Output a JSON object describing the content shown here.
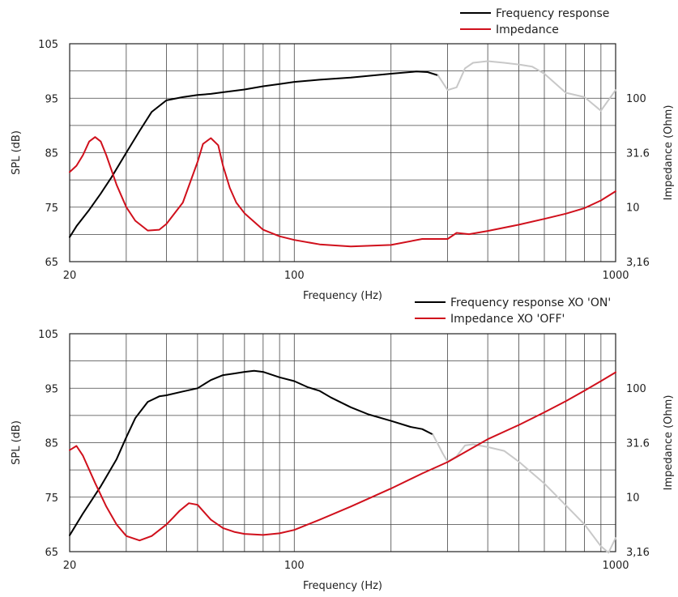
{
  "chart_data": [
    {
      "type": "line",
      "title": "",
      "xlabel": "Frequency (Hz)",
      "ylabel": "SPL (dB)",
      "y2label": "Impedance (Ohm)",
      "xscale": "log",
      "xlim": [
        20,
        1000
      ],
      "ylim": [
        65,
        105
      ],
      "y2scale": "log",
      "y2lim": [
        3.16,
        316
      ],
      "grid": true,
      "legend_position": "top-right",
      "x_ticks": [
        "20",
        "100",
        "1000"
      ],
      "y_ticks": [
        "65",
        "75",
        "85",
        "95",
        "105"
      ],
      "y2_ticks": [
        "3,16",
        "10",
        "31.6",
        "100"
      ],
      "series": [
        {
          "name": "Frequency response",
          "color": "#000000",
          "axis": "left",
          "x": [
            20,
            21,
            23,
            25,
            27,
            30,
            33,
            36,
            40,
            45,
            50,
            55,
            60,
            70,
            80,
            90,
            100,
            120,
            150,
            200,
            240,
            260,
            280
          ],
          "y": [
            69.5,
            71.5,
            74.5,
            77.5,
            80.5,
            85,
            89,
            92.5,
            94.6,
            95.2,
            95.6,
            95.8,
            96.1,
            96.6,
            97.2,
            97.6,
            98,
            98.4,
            98.8,
            99.5,
            99.9,
            99.8,
            99.2
          ]
        },
        {
          "name": "",
          "color": "#c8c8c8",
          "axis": "left",
          "x": [
            280,
            300,
            320,
            340,
            360,
            400,
            450,
            500,
            550,
            600,
            700,
            800,
            900,
            1000
          ],
          "y": [
            99.2,
            96.5,
            97,
            100.5,
            101.5,
            101.8,
            101.5,
            101.2,
            100.8,
            99.5,
            96,
            95.2,
            92.7,
            96.5
          ]
        },
        {
          "name": "Impedance",
          "color": "#d0101c",
          "axis": "right",
          "x": [
            20,
            21,
            22,
            23,
            24,
            25,
            26,
            28,
            30,
            32,
            35,
            38,
            40,
            45,
            50,
            52,
            55,
            58,
            60,
            63,
            66,
            70,
            80,
            90,
            100,
            120,
            150,
            200,
            250,
            300,
            320,
            350,
            400,
            500,
            600,
            700,
            800,
            900,
            1000
          ],
          "y": [
            21,
            24,
            30,
            40,
            44,
            40,
            30,
            16,
            10,
            7.5,
            6.1,
            6.2,
            7,
            11,
            26,
            38,
            43,
            37,
            24,
            15,
            11,
            8.8,
            6.2,
            5.4,
            5.0,
            4.55,
            4.35,
            4.5,
            5.1,
            5.1,
            5.8,
            5.65,
            6.05,
            6.9,
            7.8,
            8.7,
            9.8,
            11.5,
            14
          ]
        }
      ]
    },
    {
      "type": "line",
      "title": "",
      "xlabel": "Frequency (Hz)",
      "ylabel": "SPL (dB)",
      "y2label": "Impedance (Ohm)",
      "xscale": "log",
      "xlim": [
        20,
        1000
      ],
      "ylim": [
        65,
        105
      ],
      "y2scale": "log",
      "y2lim": [
        3.16,
        316
      ],
      "grid": true,
      "legend_position": "top-right",
      "x_ticks": [
        "20",
        "100",
        "1000"
      ],
      "y_ticks": [
        "65",
        "75",
        "85",
        "95",
        "105"
      ],
      "y2_ticks": [
        "3,16",
        "10",
        "31.6",
        "100"
      ],
      "series": [
        {
          "name": "Frequency response XO 'ON'",
          "color": "#000000",
          "axis": "left",
          "x": [
            20,
            22,
            25,
            28,
            30,
            32,
            35,
            38,
            40,
            45,
            50,
            55,
            60,
            65,
            70,
            75,
            80,
            90,
            100,
            110,
            120,
            130,
            150,
            170,
            200,
            230,
            250,
            270
          ],
          "y": [
            68,
            72,
            77,
            82,
            86,
            89.5,
            92.5,
            93.5,
            93.7,
            94.4,
            95,
            96.5,
            97.4,
            97.7,
            98,
            98.2,
            98,
            97,
            96.3,
            95.2,
            94.5,
            93.3,
            91.5,
            90.2,
            89,
            87.9,
            87.5,
            86.5
          ]
        },
        {
          "name": "",
          "color": "#c8c8c8",
          "axis": "left",
          "x": [
            270,
            290,
            300,
            320,
            340,
            360,
            400,
            450,
            500,
            600,
            700,
            800,
            900,
            950,
            1000
          ],
          "y": [
            86.5,
            83,
            81.5,
            82.5,
            84.5,
            84.7,
            84.2,
            83.5,
            81.5,
            77.5,
            73.5,
            70,
            66,
            64.8,
            67.5
          ]
        },
        {
          "name": "Impedance XO 'OFF'",
          "color": "#d0101c",
          "axis": "right",
          "x": [
            20,
            21,
            22,
            24,
            26,
            28,
            30,
            33,
            36,
            40,
            42,
            44,
            47,
            50,
            55,
            60,
            65,
            70,
            80,
            90,
            100,
            110,
            120,
            150,
            200,
            250,
            300,
            400,
            500,
            600,
            700,
            800,
            900,
            1000
          ],
          "y": [
            27,
            29.5,
            24,
            13.5,
            8.2,
            5.6,
            4.4,
            4.0,
            4.4,
            5.6,
            6.5,
            7.5,
            8.8,
            8.5,
            6.2,
            5.2,
            4.8,
            4.6,
            4.5,
            4.65,
            5.0,
            5.6,
            6.2,
            8.2,
            12,
            16.5,
            21,
            34,
            46,
            60,
            76,
            95,
            116,
            140
          ]
        }
      ]
    }
  ]
}
